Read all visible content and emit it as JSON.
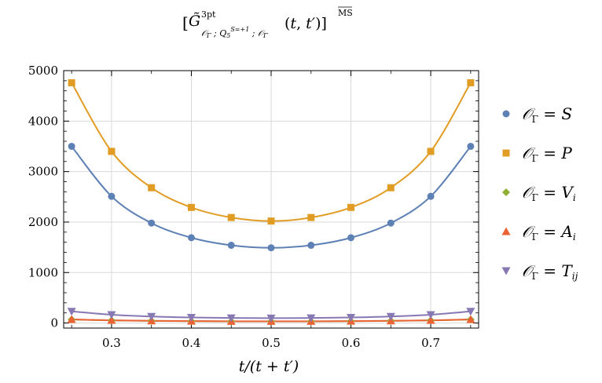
{
  "chart_data": {
    "type": "scatter",
    "title": "[G̃^3pt_{O_Γ ; Q_5^{S=+1} ; O_Γ}(t, t′)]^MS",
    "xlabel": "t/(t + t′)",
    "ylabel": "",
    "xlim": [
      0.24,
      0.76
    ],
    "ylim": [
      -100,
      5000
    ],
    "xticks": [
      0.3,
      0.4,
      0.5,
      0.6,
      0.7
    ],
    "xtick_labels": [
      "0.3",
      "0.4",
      "0.5",
      "0.6",
      "0.7"
    ],
    "yticks": [
      0,
      1000,
      2000,
      3000,
      4000,
      5000
    ],
    "ytick_labels": [
      "0",
      "1000",
      "2000",
      "3000",
      "4000",
      "5000"
    ],
    "grid": true,
    "legend_position": "right",
    "x": [
      0.25,
      0.3,
      0.35,
      0.4,
      0.45,
      0.5,
      0.55,
      0.6,
      0.65,
      0.7,
      0.75
    ],
    "series": [
      {
        "name": "O_Γ = S",
        "legend_lhs": "𝒪",
        "legend_sub": "Γ",
        "legend_rhs": "S",
        "legend_rhs_sub": "",
        "color": "#5e81b5",
        "marker": "circle",
        "values": [
          3500,
          2510,
          1980,
          1690,
          1540,
          1490,
          1540,
          1690,
          1980,
          2510,
          3500
        ]
      },
      {
        "name": "O_Γ = P",
        "legend_lhs": "𝒪",
        "legend_sub": "Γ",
        "legend_rhs": "P",
        "legend_rhs_sub": "",
        "color": "#e19c24",
        "marker": "square",
        "values": [
          4760,
          3400,
          2680,
          2290,
          2090,
          2020,
          2090,
          2290,
          2680,
          3400,
          4760
        ]
      },
      {
        "name": "O_Γ = V_i",
        "legend_lhs": "𝒪",
        "legend_sub": "Γ",
        "legend_rhs": "V",
        "legend_rhs_sub": "i",
        "color": "#8fb032",
        "marker": "diamond",
        "values": [
          70,
          52,
          42,
          36,
          33,
          32,
          33,
          36,
          42,
          52,
          70
        ]
      },
      {
        "name": "O_Γ = A_i",
        "legend_lhs": "𝒪",
        "legend_sub": "Γ",
        "legend_rhs": "A",
        "legend_rhs_sub": "i",
        "color": "#eb6235",
        "marker": "triangle-up",
        "values": [
          72,
          54,
          44,
          38,
          35,
          34,
          35,
          38,
          44,
          54,
          72
        ]
      },
      {
        "name": "O_Γ = T_ij",
        "legend_lhs": "𝒪",
        "legend_sub": "Γ",
        "legend_rhs": "T",
        "legend_rhs_sub": "ij",
        "color": "#8778b3",
        "marker": "triangle-down",
        "values": [
          230,
          165,
          130,
          110,
          100,
          97,
          100,
          110,
          130,
          165,
          230
        ]
      }
    ]
  }
}
